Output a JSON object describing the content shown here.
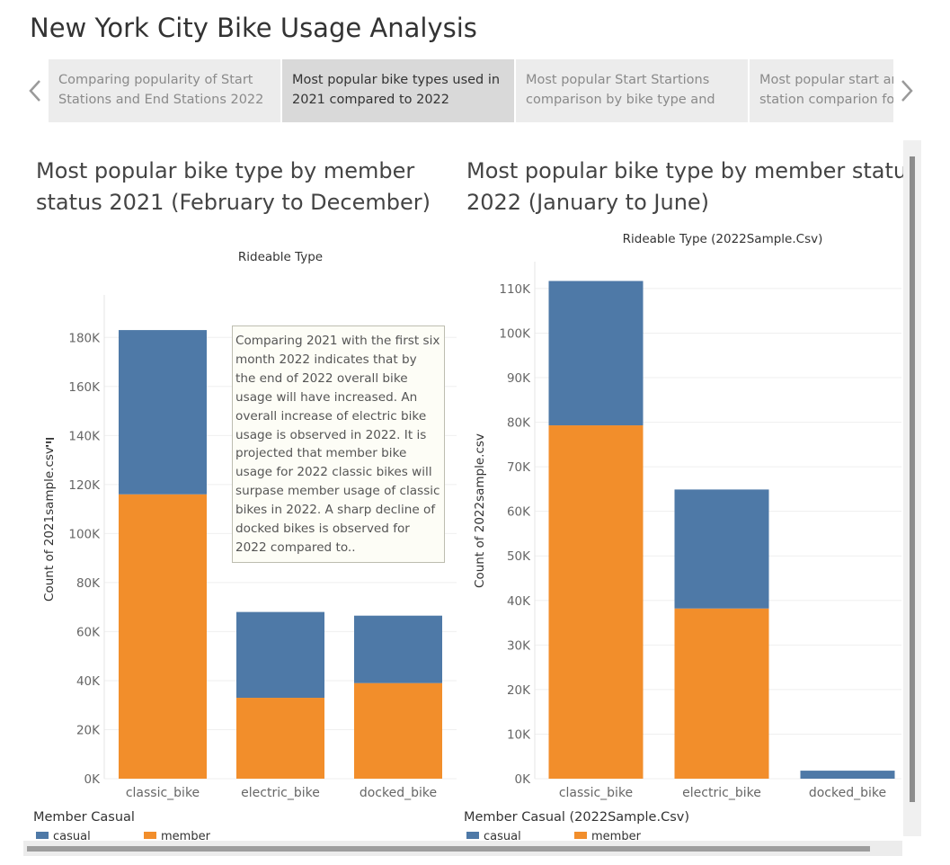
{
  "story": {
    "title": "New York City Bike Usage Analysis",
    "points": [
      {
        "line1": "Comparing popularity of Start",
        "line2": "Stations and End Stations 2022",
        "active": false
      },
      {
        "line1": "Most popular bike types used in",
        "line2": "2021 compared to 2022",
        "active": true
      },
      {
        "line1": "Most popular Start Startions",
        "line2": "comparison by bike type and",
        "active": false
      },
      {
        "line1": "Most popular start and end",
        "line2": "station comparion for",
        "active": false
      }
    ],
    "prev_icon": "chevron-left-icon",
    "next_icon": "chevron-right-icon"
  },
  "left_panel": {
    "title_line1": "Most popular bike type by member",
    "title_line2": "status 2021 (February to December)",
    "legend_title": "Member Casual",
    "legend": [
      "casual",
      "member"
    ],
    "sort_icon": "sort-icon"
  },
  "right_panel": {
    "title_line1": "Most popular bike type by member status",
    "title_line2": "2022 (January to June)",
    "legend_title": "Member Casual (2022Sample.Csv)",
    "legend": [
      "casual",
      "member"
    ]
  },
  "annotation": {
    "text": "Comparing 2021 with the first six month 2022 indicates that by the end of 2022 overall bike usage will have increased. An overall increase of electric bike usage is observed in 2022. It is projected that member bike usage for 2022 classic bikes will surpase member usage of classic bikes in 2022. A sharp decline of docked bikes is observed for 2022 compared to.."
  },
  "colors": {
    "casual": "#4e79a7",
    "member": "#f28e2b",
    "grid": "#efefef",
    "axis_text": "#666666"
  },
  "chart_data": [
    {
      "type": "bar",
      "stacked": true,
      "title": "Rideable Type",
      "xlabel": "",
      "ylabel": "Count of 2021sample.csv",
      "categories": [
        "classic_bike",
        "electric_bike",
        "docked_bike"
      ],
      "series": [
        {
          "name": "member",
          "values": [
            116000,
            33000,
            39000
          ]
        },
        {
          "name": "casual",
          "values": [
            67000,
            35000,
            27500
          ]
        }
      ],
      "ylim": [
        0,
        190000
      ],
      "yticks": [
        0,
        20000,
        40000,
        60000,
        80000,
        100000,
        120000,
        140000,
        160000,
        180000
      ],
      "ytick_labels": [
        "0K",
        "20K",
        "40K",
        "60K",
        "80K",
        "100K",
        "120K",
        "140K",
        "160K",
        "180K"
      ],
      "grid": true,
      "legend_position": "bottom"
    },
    {
      "type": "bar",
      "stacked": true,
      "title": "Rideable Type (2022Sample.Csv)",
      "xlabel": "",
      "ylabel": "Count of 2022sample.csv",
      "categories": [
        "classic_bike",
        "electric_bike",
        "docked_bike"
      ],
      "series": [
        {
          "name": "member",
          "values": [
            79300,
            38200,
            0
          ]
        },
        {
          "name": "casual",
          "values": [
            32400,
            26700,
            1800
          ]
        }
      ],
      "ylim": [
        0,
        112000
      ],
      "yticks": [
        0,
        10000,
        20000,
        30000,
        40000,
        50000,
        60000,
        70000,
        80000,
        90000,
        100000,
        110000
      ],
      "ytick_labels": [
        "0K",
        "10K",
        "20K",
        "30K",
        "40K",
        "50K",
        "60K",
        "70K",
        "80K",
        "90K",
        "100K",
        "110K"
      ],
      "grid": true,
      "legend_position": "bottom"
    }
  ]
}
